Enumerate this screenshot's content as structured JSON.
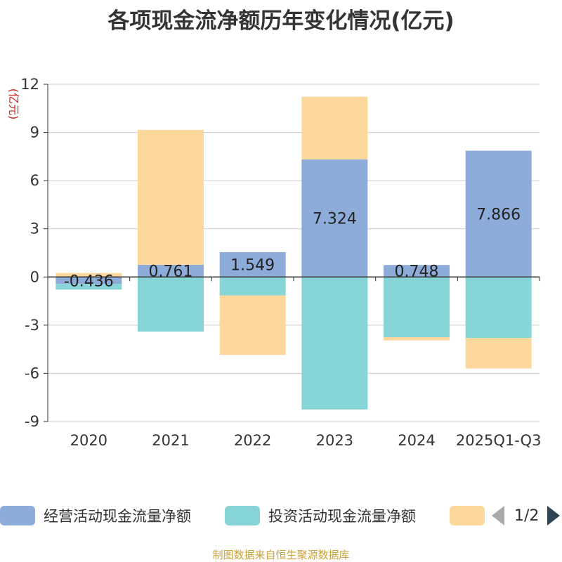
{
  "chart_data": {
    "type": "bar",
    "stacked": true,
    "title": "各项现金流净额历年变化情况(亿元)",
    "ylabel": "(亿元)",
    "xlabel": "",
    "ylim": [
      -9,
      12
    ],
    "yticks": [
      12,
      9,
      6,
      3,
      0,
      -3,
      -6,
      -9
    ],
    "categories": [
      "2020",
      "2021",
      "2022",
      "2023",
      "2024",
      "2025Q1-Q3"
    ],
    "series": [
      {
        "name": "经营活动现金流量净额",
        "color": "#8eacd9",
        "values": [
          -0.436,
          0.761,
          1.549,
          7.324,
          0.748,
          7.866
        ],
        "labels": [
          "-0.436",
          "0.761",
          "1.549",
          "7.324",
          "0.748",
          "7.866"
        ]
      },
      {
        "name": "投资活动现金流量净额",
        "color": "#88d5d7",
        "values": [
          -0.35,
          -3.4,
          -1.15,
          -8.25,
          -3.75,
          -3.8
        ]
      },
      {
        "name": "",
        "color": "#fdd89c",
        "values": [
          0.25,
          8.4,
          -3.7,
          3.9,
          -0.2,
          -1.9
        ]
      }
    ]
  },
  "legend": {
    "items": [
      {
        "label": "经营活动现金流量净额",
        "color": "#8eacd9"
      },
      {
        "label": "投资活动现金流量净额",
        "color": "#88d5d7"
      },
      {
        "label": "",
        "color": "#fdd89c"
      }
    ],
    "pager": "1/2"
  },
  "source_note": "制图数据来自恒生聚源数据库"
}
